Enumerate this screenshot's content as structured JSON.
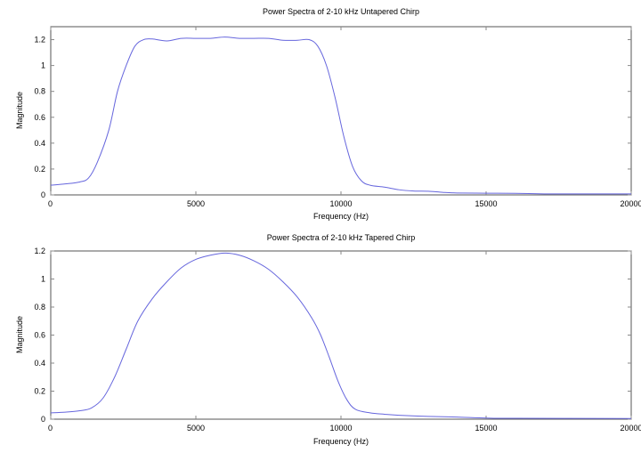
{
  "chart_data": [
    {
      "type": "line",
      "title": "Power Spectra of 2-10 kHz Untapered Chirp",
      "xlabel": "Frequency (Hz)",
      "ylabel": "Magnitude",
      "xlim": [
        0,
        20000
      ],
      "ylim": [
        0,
        1.3
      ],
      "xticks": [
        "0",
        "5000",
        "10000",
        "15000",
        "20000"
      ],
      "yticks": [
        "0",
        "0.2",
        "0.4",
        "0.6",
        "0.8",
        "1",
        "1.2"
      ],
      "grid": false,
      "line_color": "#6666dd",
      "series": [
        {
          "x": [
            0,
            500,
            1000,
            1300,
            1600,
            2000,
            2300,
            2600,
            2900,
            3200,
            3500,
            4000,
            4500,
            5000,
            5500,
            6000,
            6500,
            7000,
            7500,
            8000,
            8500,
            8900,
            9200,
            9500,
            9800,
            10100,
            10400,
            10700,
            11000,
            11500,
            12000,
            12500,
            13000,
            13500,
            14000,
            15000,
            16000,
            17000,
            18000,
            19000,
            20000
          ],
          "y": [
            0.075,
            0.085,
            0.1,
            0.13,
            0.25,
            0.5,
            0.8,
            1.0,
            1.15,
            1.2,
            1.205,
            1.19,
            1.21,
            1.21,
            1.21,
            1.22,
            1.21,
            1.21,
            1.21,
            1.195,
            1.195,
            1.2,
            1.15,
            1.0,
            0.75,
            0.45,
            0.22,
            0.11,
            0.075,
            0.06,
            0.04,
            0.03,
            0.028,
            0.02,
            0.015,
            0.013,
            0.012,
            0.008,
            0.008,
            0.008,
            0.008
          ]
        }
      ]
    },
    {
      "type": "line",
      "title": "Power Spectra of 2-10 kHz Tapered Chirp",
      "xlabel": "Frequency (Hz)",
      "ylabel": "Magnitude",
      "xlim": [
        0,
        20000
      ],
      "ylim": [
        0,
        1.2
      ],
      "xticks": [
        "0",
        "5000",
        "10000",
        "15000",
        "20000"
      ],
      "yticks": [
        "0",
        "0.2",
        "0.4",
        "0.6",
        "0.8",
        "1",
        "1.2"
      ],
      "grid": false,
      "line_color": "#6666dd",
      "series": [
        {
          "x": [
            0,
            500,
            1000,
            1400,
            1800,
            2200,
            2600,
            3000,
            3500,
            4000,
            4500,
            5000,
            5500,
            6000,
            6500,
            7000,
            7500,
            8000,
            8500,
            9000,
            9300,
            9600,
            9900,
            10200,
            10500,
            11000,
            11500,
            12000,
            13000,
            14000,
            15000,
            16000,
            20000
          ],
          "y": [
            0.045,
            0.05,
            0.06,
            0.08,
            0.15,
            0.3,
            0.5,
            0.7,
            0.86,
            0.98,
            1.08,
            1.14,
            1.17,
            1.185,
            1.17,
            1.13,
            1.07,
            0.98,
            0.87,
            0.72,
            0.6,
            0.44,
            0.27,
            0.14,
            0.07,
            0.045,
            0.035,
            0.028,
            0.02,
            0.015,
            0.008,
            0.006,
            0.005
          ]
        }
      ]
    }
  ]
}
